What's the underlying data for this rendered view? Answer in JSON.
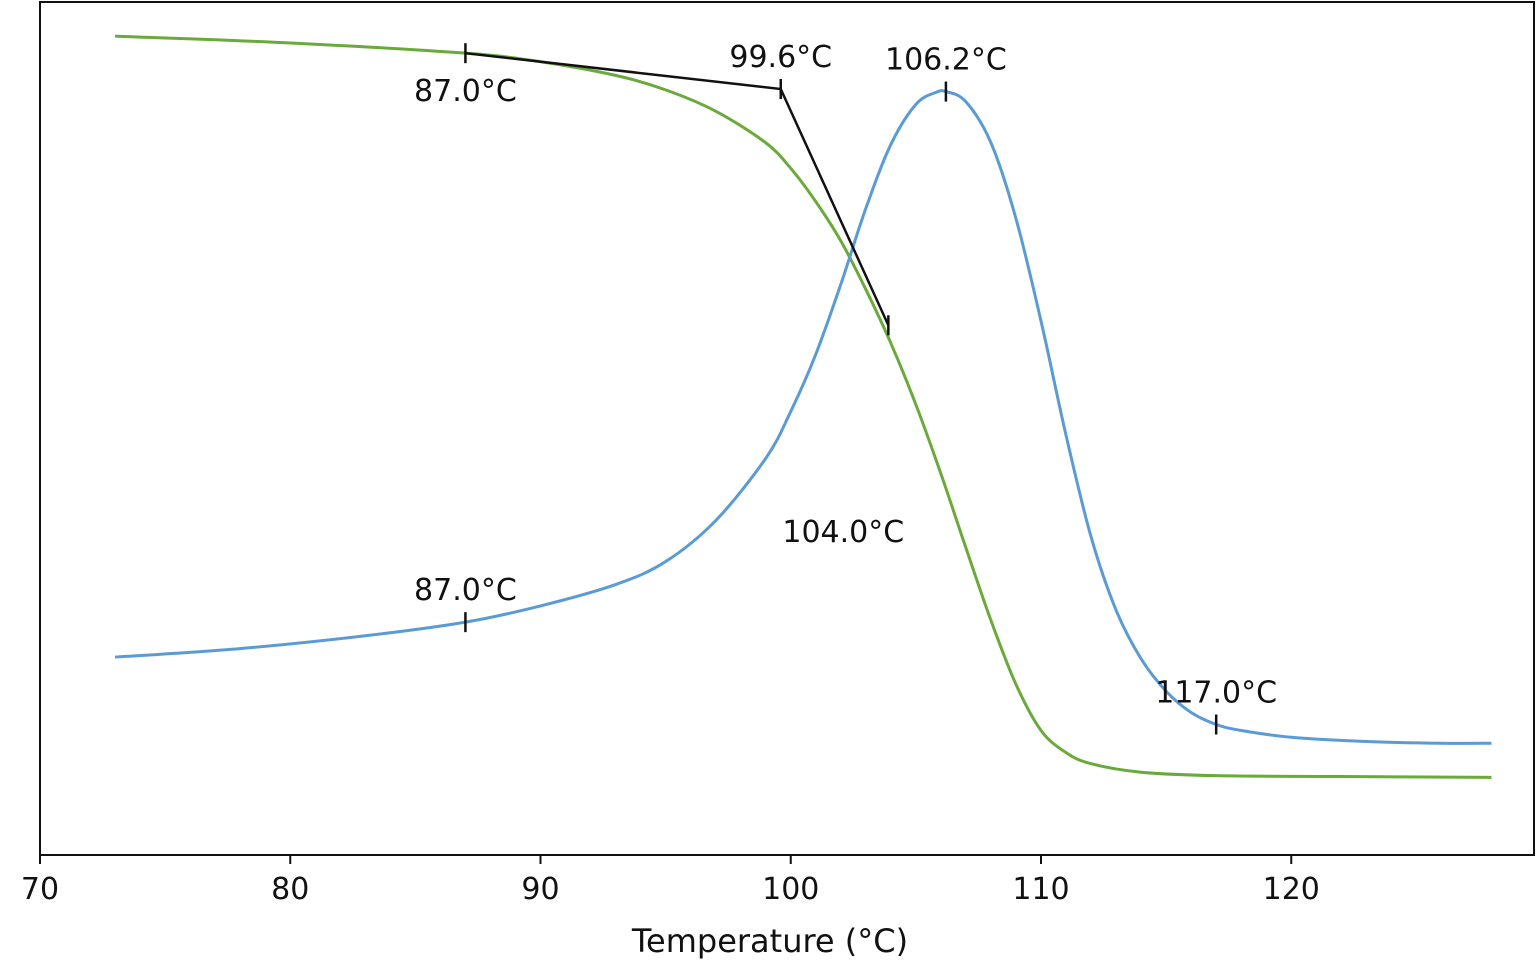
{
  "chart_data": {
    "type": "line",
    "title": "",
    "xlabel": "Temperature (°C)",
    "ylabel": "",
    "xlim": [
      70,
      129.7
    ],
    "ylim": [
      0,
      1
    ],
    "grid": false,
    "x_ticks": [
      70,
      80,
      90,
      100,
      110,
      120
    ],
    "series": [
      {
        "color": "#6aaa3a",
        "points": [
          [
            73.0,
            0.96
          ],
          [
            80.0,
            0.952
          ],
          [
            87.0,
            0.94
          ],
          [
            90.0,
            0.93
          ],
          [
            93.0,
            0.914
          ],
          [
            95.0,
            0.897
          ],
          [
            97.0,
            0.872
          ],
          [
            99.0,
            0.835
          ],
          [
            100.0,
            0.805
          ],
          [
            101.0,
            0.766
          ],
          [
            102.0,
            0.72
          ],
          [
            103.0,
            0.663
          ],
          [
            104.0,
            0.6
          ],
          [
            105.0,
            0.528
          ],
          [
            106.0,
            0.447
          ],
          [
            107.0,
            0.36
          ],
          [
            108.0,
            0.275
          ],
          [
            109.0,
            0.2
          ],
          [
            110.0,
            0.146
          ],
          [
            111.0,
            0.12
          ],
          [
            112.0,
            0.107
          ],
          [
            114.0,
            0.097
          ],
          [
            117.0,
            0.093
          ],
          [
            122.0,
            0.092
          ],
          [
            128.0,
            0.091
          ]
        ]
      },
      {
        "color": "#5b9bd5",
        "points": [
          [
            73.0,
            0.232
          ],
          [
            78.0,
            0.242
          ],
          [
            83.0,
            0.257
          ],
          [
            87.0,
            0.273
          ],
          [
            90.0,
            0.292
          ],
          [
            93.0,
            0.317
          ],
          [
            95.0,
            0.344
          ],
          [
            97.0,
            0.392
          ],
          [
            99.0,
            0.465
          ],
          [
            100.0,
            0.52
          ],
          [
            101.0,
            0.587
          ],
          [
            102.0,
            0.669
          ],
          [
            103.0,
            0.758
          ],
          [
            104.0,
            0.833
          ],
          [
            105.0,
            0.88
          ],
          [
            105.8,
            0.894
          ],
          [
            106.2,
            0.895
          ],
          [
            107.0,
            0.883
          ],
          [
            108.0,
            0.835
          ],
          [
            109.0,
            0.746
          ],
          [
            110.0,
            0.626
          ],
          [
            111.0,
            0.492
          ],
          [
            112.0,
            0.373
          ],
          [
            113.0,
            0.287
          ],
          [
            114.0,
            0.23
          ],
          [
            115.0,
            0.192
          ],
          [
            116.0,
            0.167
          ],
          [
            117.0,
            0.153
          ],
          [
            118.0,
            0.146
          ],
          [
            120.0,
            0.138
          ],
          [
            123.0,
            0.133
          ],
          [
            126.0,
            0.131
          ],
          [
            128.0,
            0.131
          ]
        ]
      }
    ],
    "construction": {
      "color": "#111111",
      "points": [
        [
          87.0,
          0.94
        ],
        [
          99.6,
          0.898
        ],
        [
          103.9,
          0.621
        ]
      ]
    },
    "markers": [
      {
        "x": 87.0,
        "y": 0.94
      },
      {
        "x": 99.6,
        "y": 0.898
      },
      {
        "x": 103.9,
        "y": 0.621
      },
      {
        "x": 106.2,
        "y": 0.895
      },
      {
        "x": 87.0,
        "y": 0.273
      },
      {
        "x": 117.0,
        "y": 0.153
      }
    ],
    "annotations": [
      {
        "text": "87.0°C",
        "x": 87.0,
        "y": 0.94,
        "anchor": "below"
      },
      {
        "text": "99.6°C",
        "x": 99.6,
        "y": 0.898,
        "anchor": "above"
      },
      {
        "text": "106.2°C",
        "x": 106.2,
        "y": 0.895,
        "anchor": "above"
      },
      {
        "text": "104.0°C",
        "x": 102.1,
        "y": 0.38,
        "anchor": "center"
      },
      {
        "text": "87.0°C",
        "x": 87.0,
        "y": 0.273,
        "anchor": "above"
      },
      {
        "text": "117.0°C",
        "x": 117.0,
        "y": 0.153,
        "anchor": "above"
      }
    ]
  }
}
